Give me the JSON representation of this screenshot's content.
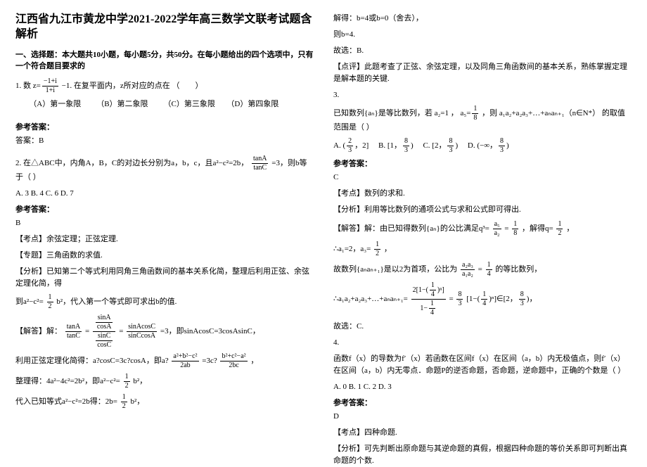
{
  "title": "江西省九江市黄龙中学2021-2022学年高三数学文联考试题含解析",
  "section1": {
    "head": "一、选择题：本大题共10小题，每小题5分，共50分。在每小题给出的四个选项中，只有一个符合题目要求的"
  },
  "q1": {
    "stem_a": "1. 数",
    "frac_num": "−1+i",
    "frac_den": "1+i",
    "stem_b": "−1. 在复平面内，z所对应的点在",
    "blank": "（        ）",
    "optA": "（A）第一象限",
    "optB": "（B）第二象限",
    "optC": "（C）第三象限",
    "optD": "（D）第四象限",
    "ansLabel": "参考答案：",
    "ans": "答案：B"
  },
  "q2": {
    "stem_a": "2. 在△ABC中，内角A，B，C的对边长分别为a，b，c，且a²−c²=2b，",
    "frac_num": "tanA",
    "frac_den": "tanC",
    "stem_b": "=3，则b等于（    ）",
    "opts": "A. 3    B. 4    C. 6    D. 7",
    "ansLabel": "参考答案：",
    "ans": "B",
    "kd": "【考点】余弦定理；正弦定理.",
    "zt": "【专题】三角函数的求值.",
    "fx_a": "【分析】已知第二个等式利用同角三角函数间的基本关系化简，整理后利用正弦、余弦定理化简，得",
    "fx_b": "到a²−c²=",
    "fx_frac_num": "1",
    "fx_frac_den": "2",
    "fx_c": "b²，代入第一个等式即可求出b的值.",
    "jd_a": "【解答】解：",
    "jd_frac1_num": "tanA",
    "jd_frac1_den": "tanC",
    "jd_eq": "=",
    "jd_chain_num_a": "sinA",
    "jd_chain_den_a": "cosA",
    "jd_chain_num_b": "sinC",
    "jd_chain_den_b": "cosC",
    "jd_eq2": "=",
    "jd_fr2_num": "sinAcosC",
    "jd_fr2_den": "sinCcosA",
    "jd_tail": "=3，即sinAcosC=3cosAsinC，",
    "line2_a": "利用正弦定理化简得：a?cosC=3c?cosA，即a?",
    "l2_fr1_num": "a²+b²−c²",
    "l2_fr1_den": "2ab",
    "l2_mid": "=3c?",
    "l2_fr2_num": "b²+c²−a²",
    "l2_fr2_den": "2bc",
    "l2_tail": "，",
    "line3_a": "整理得：4a²−4c²=2b²，即a²−c²=",
    "l3_fr_num": "1",
    "l3_fr_den": "2",
    "l3_tail": "b²，",
    "line4_a": "代入已知等式a²−c²=2b得：2b=",
    "l4_fr_num": "1",
    "l4_fr_den": "2",
    "l4_tail": "b²，"
  },
  "r1": {
    "a": "解得：b=4或b=0（舍去），",
    "b": "则b=4.",
    "c": "故选：B.",
    "dp": "【点评】此题考查了正弦、余弦定理，以及同角三角函数间的基本关系，熟练掌握定理是解本题的关键."
  },
  "q3": {
    "num": "3.",
    "stem_a": "已知数列{aₙ}是等比数列，若",
    "s1": "a₂=1",
    "sep": "，",
    "s2_a": "a₅=",
    "s2_fr_num": "1",
    "s2_fr_den": "8",
    "stem_b": "，则",
    "expr": "a₁a₂+a₂a₃+…+aₙaₙ₊₁（n∈N*）",
    "stem_c": "的取值范围是（    ）",
    "optA_a": "A. ",
    "optA_b": "(",
    "optA_fr1_num": "2",
    "optA_fr1_den": "3",
    "optA_c": "，2]",
    "optB_a": "B. [1，",
    "optB_fr_num": "8",
    "optB_fr_den": "3",
    "optB_b": ")",
    "optC_a": "C. [2，",
    "optC_fr_num": "8",
    "optC_fr_den": "3",
    "optC_b": ")",
    "optD_a": "D. (−∞，",
    "optD_fr_num": "8",
    "optD_fr_den": "3",
    "optD_b": ")",
    "ansLabel": "参考答案：",
    "ans": "C",
    "kd": "【考点】数列的求和.",
    "fx": "【分析】利用等比数列的通项公式与求和公式即可得出.",
    "jd_a": "【解答】解：由已知得数列{aₙ}的公比满足q³=",
    "jd_fr1_num": "a₅",
    "jd_fr1_den": "a₂",
    "jd_mid": "=",
    "jd_fr2_num": "1",
    "jd_fr2_den": "8",
    "jd_b": "，解得q=",
    "jd_fr3_num": "1",
    "jd_fr3_den": "2",
    "jd_c": "，",
    "line2_a": "∴a₁=2，a₃=",
    "l2_fr_num": "1",
    "l2_fr_den": "2",
    "l2_b": "，",
    "line3_a": "故数列{aₙaₙ₊₁}是以2为首项，公比为",
    "l3_fr1_num": "a₂a₃",
    "l3_fr1_den": "a₁a₂",
    "l3_mid": "=",
    "l3_fr2_num": "1",
    "l3_fr2_den": "4",
    "l3_b": "的等比数列，",
    "line4_a": "∴a₁a₂+a₂a₃+…+aₙaₙ₊₁=",
    "l4_big_num_a": "2[1−(",
    "l4_big_inner_num": "1",
    "l4_big_inner_den": "4",
    "l4_big_num_b": ")ⁿ]",
    "l4_big_den_a": "1−",
    "l4_big_den_fr_num": "1",
    "l4_big_den_fr_den": "4",
    "l4_eq": "=",
    "l4_fr3_num": "8",
    "l4_fr3_den": "3",
    "l4_mid2": "[1−(",
    "l4_fr4_num": "1",
    "l4_fr4_den": "4",
    "l4_mid3": ")ⁿ]∈[2，",
    "l4_fr5_num": "8",
    "l4_fr5_den": "3",
    "l4_tail": ")，",
    "line5": "故选：C."
  },
  "q4": {
    "num": "4.",
    "stem": "函数f（x）的导数为f′（x）若函数在区间f（x）在区间（a，b）内无极值点，则f′（x）在区间（a，b）内无零点．命题P的逆否命题，否命题，逆命题中，正确的个数是（    ）",
    "opts": "A. 0    B. 1    C. 2    D. 3",
    "ansLabel": "参考答案：",
    "ans": "D",
    "kd": "【考点】四种命题.",
    "fx": "【分析】可先判断出原命题与其逆命题的真假，根据四种命题的等价关系即可判断出真命题的个数."
  }
}
